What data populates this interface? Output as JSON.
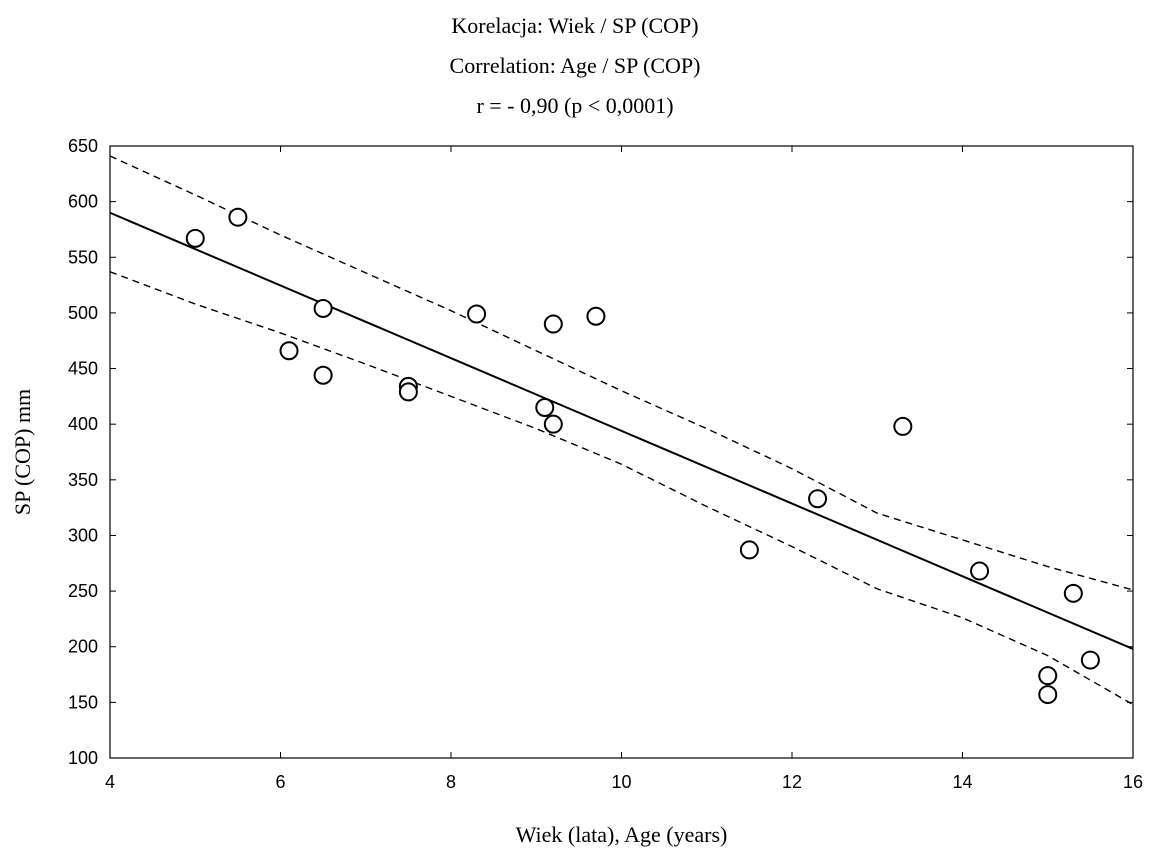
{
  "chart_data": {
    "type": "scatter",
    "title_lines": [
      "Korelacja: Wiek / SP (COP)",
      "Correlation: Age / SP (COP)",
      "r = - 0,90 (p < 0,0001)"
    ],
    "xlabel": "Wiek (lata), Age (years)",
    "ylabel": "SP (COP) mm",
    "xlim": [
      4,
      16
    ],
    "ylim": [
      100,
      650
    ],
    "x_ticks": [
      4,
      6,
      8,
      10,
      12,
      14,
      16
    ],
    "y_ticks": [
      100,
      150,
      200,
      250,
      300,
      350,
      400,
      450,
      500,
      550,
      600,
      650
    ],
    "grid": false,
    "points": [
      {
        "x": 5.0,
        "y": 567
      },
      {
        "x": 5.5,
        "y": 586
      },
      {
        "x": 6.1,
        "y": 466
      },
      {
        "x": 6.5,
        "y": 504
      },
      {
        "x": 6.5,
        "y": 444
      },
      {
        "x": 7.5,
        "y": 434
      },
      {
        "x": 7.5,
        "y": 429
      },
      {
        "x": 8.3,
        "y": 499
      },
      {
        "x": 9.1,
        "y": 415
      },
      {
        "x": 9.2,
        "y": 490
      },
      {
        "x": 9.2,
        "y": 400
      },
      {
        "x": 9.7,
        "y": 497
      },
      {
        "x": 11.5,
        "y": 287
      },
      {
        "x": 12.3,
        "y": 333
      },
      {
        "x": 13.3,
        "y": 398
      },
      {
        "x": 14.2,
        "y": 268
      },
      {
        "x": 15.0,
        "y": 174
      },
      {
        "x": 15.0,
        "y": 157
      },
      {
        "x": 15.3,
        "y": 248
      },
      {
        "x": 15.5,
        "y": 188
      }
    ],
    "regression_line": {
      "x": [
        4,
        16
      ],
      "y": [
        590,
        198
      ]
    },
    "confidence_band_upper": {
      "x": [
        4,
        5,
        6,
        7,
        8,
        9,
        10,
        11,
        12,
        13,
        14,
        15,
        16
      ],
      "y": [
        641,
        606,
        570,
        536,
        502,
        466,
        430,
        396,
        360,
        320,
        296,
        272,
        251
      ]
    },
    "confidence_band_lower": {
      "x": [
        4,
        5,
        6,
        7,
        8,
        9,
        10,
        11,
        12,
        13,
        14,
        15,
        16
      ],
      "y": [
        537,
        508,
        482,
        454,
        425,
        396,
        364,
        326,
        290,
        252,
        226,
        192,
        148
      ]
    }
  }
}
